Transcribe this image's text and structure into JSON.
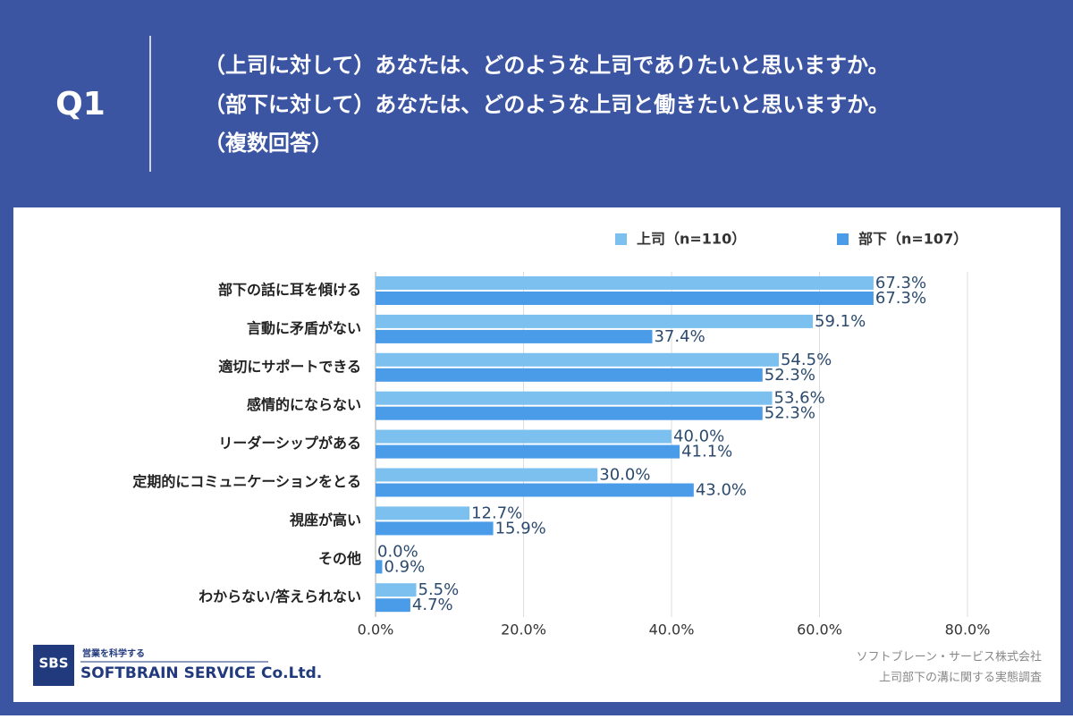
{
  "header": {
    "label": "Q1",
    "lines": [
      "（上司に対して）あなたは、どのような上司でありたいと思いますか。",
      "（部下に対して）あなたは、どのような上司と働きたいと思いますか。",
      "（複数回答）"
    ]
  },
  "chart_data": {
    "type": "bar",
    "orientation": "horizontal",
    "categories": [
      "部下の話に耳を傾ける",
      "言動に矛盾がない",
      "適切にサポートできる",
      "感情的にならない",
      "リーダーシップがある",
      "定期的にコミュニケーションをとる",
      "視座が高い",
      "その他",
      "わからない/答えられない"
    ],
    "series": [
      {
        "name": "上司（n=110）",
        "color": "#7cc0f0",
        "values": [
          67.3,
          59.1,
          54.5,
          53.6,
          40.0,
          30.0,
          12.7,
          0.0,
          5.5
        ],
        "value_labels": [
          "67.3%",
          "59.1%",
          "54.5%",
          "53.6%",
          "40.0%",
          "30.0%",
          "12.7%",
          "0.0%",
          "5.5%"
        ]
      },
      {
        "name": "部下（n=107）",
        "color": "#4a9be8",
        "values": [
          67.3,
          37.4,
          52.3,
          52.3,
          41.1,
          43.0,
          15.9,
          0.9,
          4.7
        ],
        "value_labels": [
          "67.3%",
          "37.4%",
          "52.3%",
          "52.3%",
          "41.1%",
          "43.0%",
          "15.9%",
          "0.9%",
          "4.7%"
        ]
      }
    ],
    "xlim": [
      0,
      80
    ],
    "xticks": [
      {
        "value": 0,
        "label": "0.0%"
      },
      {
        "value": 20,
        "label": "20.0%"
      },
      {
        "value": 40,
        "label": "40.0%"
      },
      {
        "value": 60,
        "label": "60.0%"
      },
      {
        "value": 80,
        "label": "80.0%"
      }
    ],
    "grid": true,
    "legend": "top"
  },
  "footer": {
    "logo": "SBS",
    "tagline": "営業を科学する",
    "company": "SOFTBRAIN SERVICE Co.Ltd.",
    "notes": [
      "ソフトブレーン・サービス株式会社",
      "上司部下の溝に関する実態調査"
    ]
  }
}
